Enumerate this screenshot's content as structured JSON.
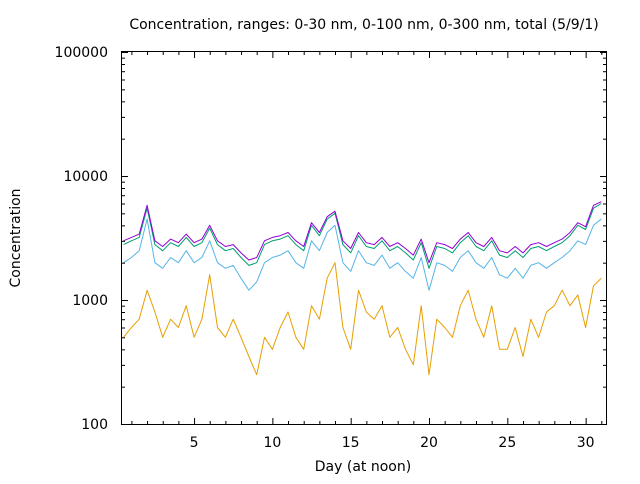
{
  "chart_data": {
    "type": "line",
    "title": "Concentration, ranges: 0-30 nm, 0-100 nm, 0-300 nm, total (5/9/1)",
    "xlabel": "Day (at noon)",
    "ylabel": "Concentration",
    "xlim": [
      0.4,
      31.3
    ],
    "ylim": [
      100,
      100000
    ],
    "y_scale": "log",
    "grid": false,
    "legend": "none",
    "x_ticks": [
      5,
      10,
      15,
      20,
      25,
      30
    ],
    "y_ticks": [
      100,
      1000,
      10000,
      100000
    ],
    "x_tick_labels": [
      "5",
      "10",
      "15",
      "20",
      "25",
      "30"
    ],
    "y_tick_labels": [
      "100",
      "1000",
      "10000",
      "100000"
    ],
    "x": [
      0.5,
      1,
      1.5,
      2,
      2.5,
      3,
      3.5,
      4,
      4.5,
      5,
      5.5,
      6,
      6.5,
      7,
      7.5,
      8,
      8.5,
      9,
      9.5,
      10,
      10.5,
      11,
      11.5,
      12,
      12.5,
      13,
      13.5,
      14,
      14.5,
      15,
      15.5,
      16,
      16.5,
      17,
      17.5,
      18,
      18.5,
      19,
      19.5,
      20,
      20.5,
      21,
      21.5,
      22,
      22.5,
      23,
      23.5,
      24,
      24.5,
      25,
      25.5,
      26,
      26.5,
      27,
      27.5,
      28,
      28.5,
      29,
      29.5,
      30,
      30.5,
      31
    ],
    "series": [
      {
        "color": "#e69f00",
        "values": [
          500,
          600,
          700,
          1200,
          800,
          500,
          700,
          600,
          900,
          500,
          700,
          1600,
          600,
          500,
          700,
          500,
          350,
          250,
          500,
          400,
          600,
          800,
          500,
          400,
          900,
          700,
          1500,
          2000,
          600,
          400,
          1200,
          800,
          700,
          900,
          500,
          600,
          400,
          300,
          900,
          250,
          700,
          600,
          500,
          900,
          1200,
          700,
          500,
          900,
          400,
          400,
          600,
          350,
          700,
          500,
          800,
          900,
          1200,
          900,
          1100,
          600,
          1300,
          1500
        ]
      },
      {
        "color": "#56b4e9",
        "values": [
          2000,
          2200,
          2500,
          4500,
          2000,
          1800,
          2200,
          2000,
          2500,
          2000,
          2200,
          3000,
          2000,
          1800,
          1900,
          1500,
          1200,
          1400,
          2000,
          2200,
          2300,
          2500,
          2000,
          1800,
          3000,
          2500,
          3500,
          4000,
          2000,
          1700,
          2500,
          2000,
          1900,
          2300,
          1800,
          2000,
          1700,
          1500,
          2200,
          1200,
          2000,
          1900,
          1700,
          2200,
          2500,
          2000,
          1800,
          2200,
          1600,
          1500,
          1800,
          1500,
          1900,
          2000,
          1800,
          2000,
          2200,
          2500,
          3000,
          2800,
          4000,
          4500
        ]
      },
      {
        "color": "#009e73",
        "values": [
          2800,
          3000,
          3200,
          5500,
          2800,
          2500,
          2900,
          2700,
          3200,
          2700,
          2900,
          3800,
          2800,
          2500,
          2600,
          2200,
          1900,
          2000,
          2800,
          3000,
          3100,
          3300,
          2800,
          2500,
          4000,
          3300,
          4500,
          5000,
          2800,
          2400,
          3300,
          2700,
          2600,
          3000,
          2500,
          2700,
          2400,
          2100,
          2900,
          1800,
          2700,
          2600,
          2400,
          2900,
          3300,
          2700,
          2500,
          3000,
          2300,
          2200,
          2500,
          2200,
          2600,
          2700,
          2500,
          2700,
          2900,
          3300,
          4000,
          3700,
          5500,
          6000
        ]
      },
      {
        "color": "#9400d3",
        "values": [
          3000,
          3200,
          3400,
          5800,
          3000,
          2700,
          3100,
          2900,
          3400,
          2900,
          3100,
          4000,
          3000,
          2700,
          2800,
          2400,
          2100,
          2200,
          3000,
          3200,
          3300,
          3500,
          3000,
          2700,
          4200,
          3500,
          4700,
          5200,
          3000,
          2600,
          3500,
          2900,
          2800,
          3200,
          2700,
          2900,
          2600,
          2300,
          3100,
          2000,
          2900,
          2800,
          2600,
          3100,
          3500,
          2900,
          2700,
          3200,
          2500,
          2400,
          2700,
          2400,
          2800,
          2900,
          2700,
          2900,
          3100,
          3500,
          4200,
          3900,
          5800,
          6200
        ]
      }
    ]
  }
}
